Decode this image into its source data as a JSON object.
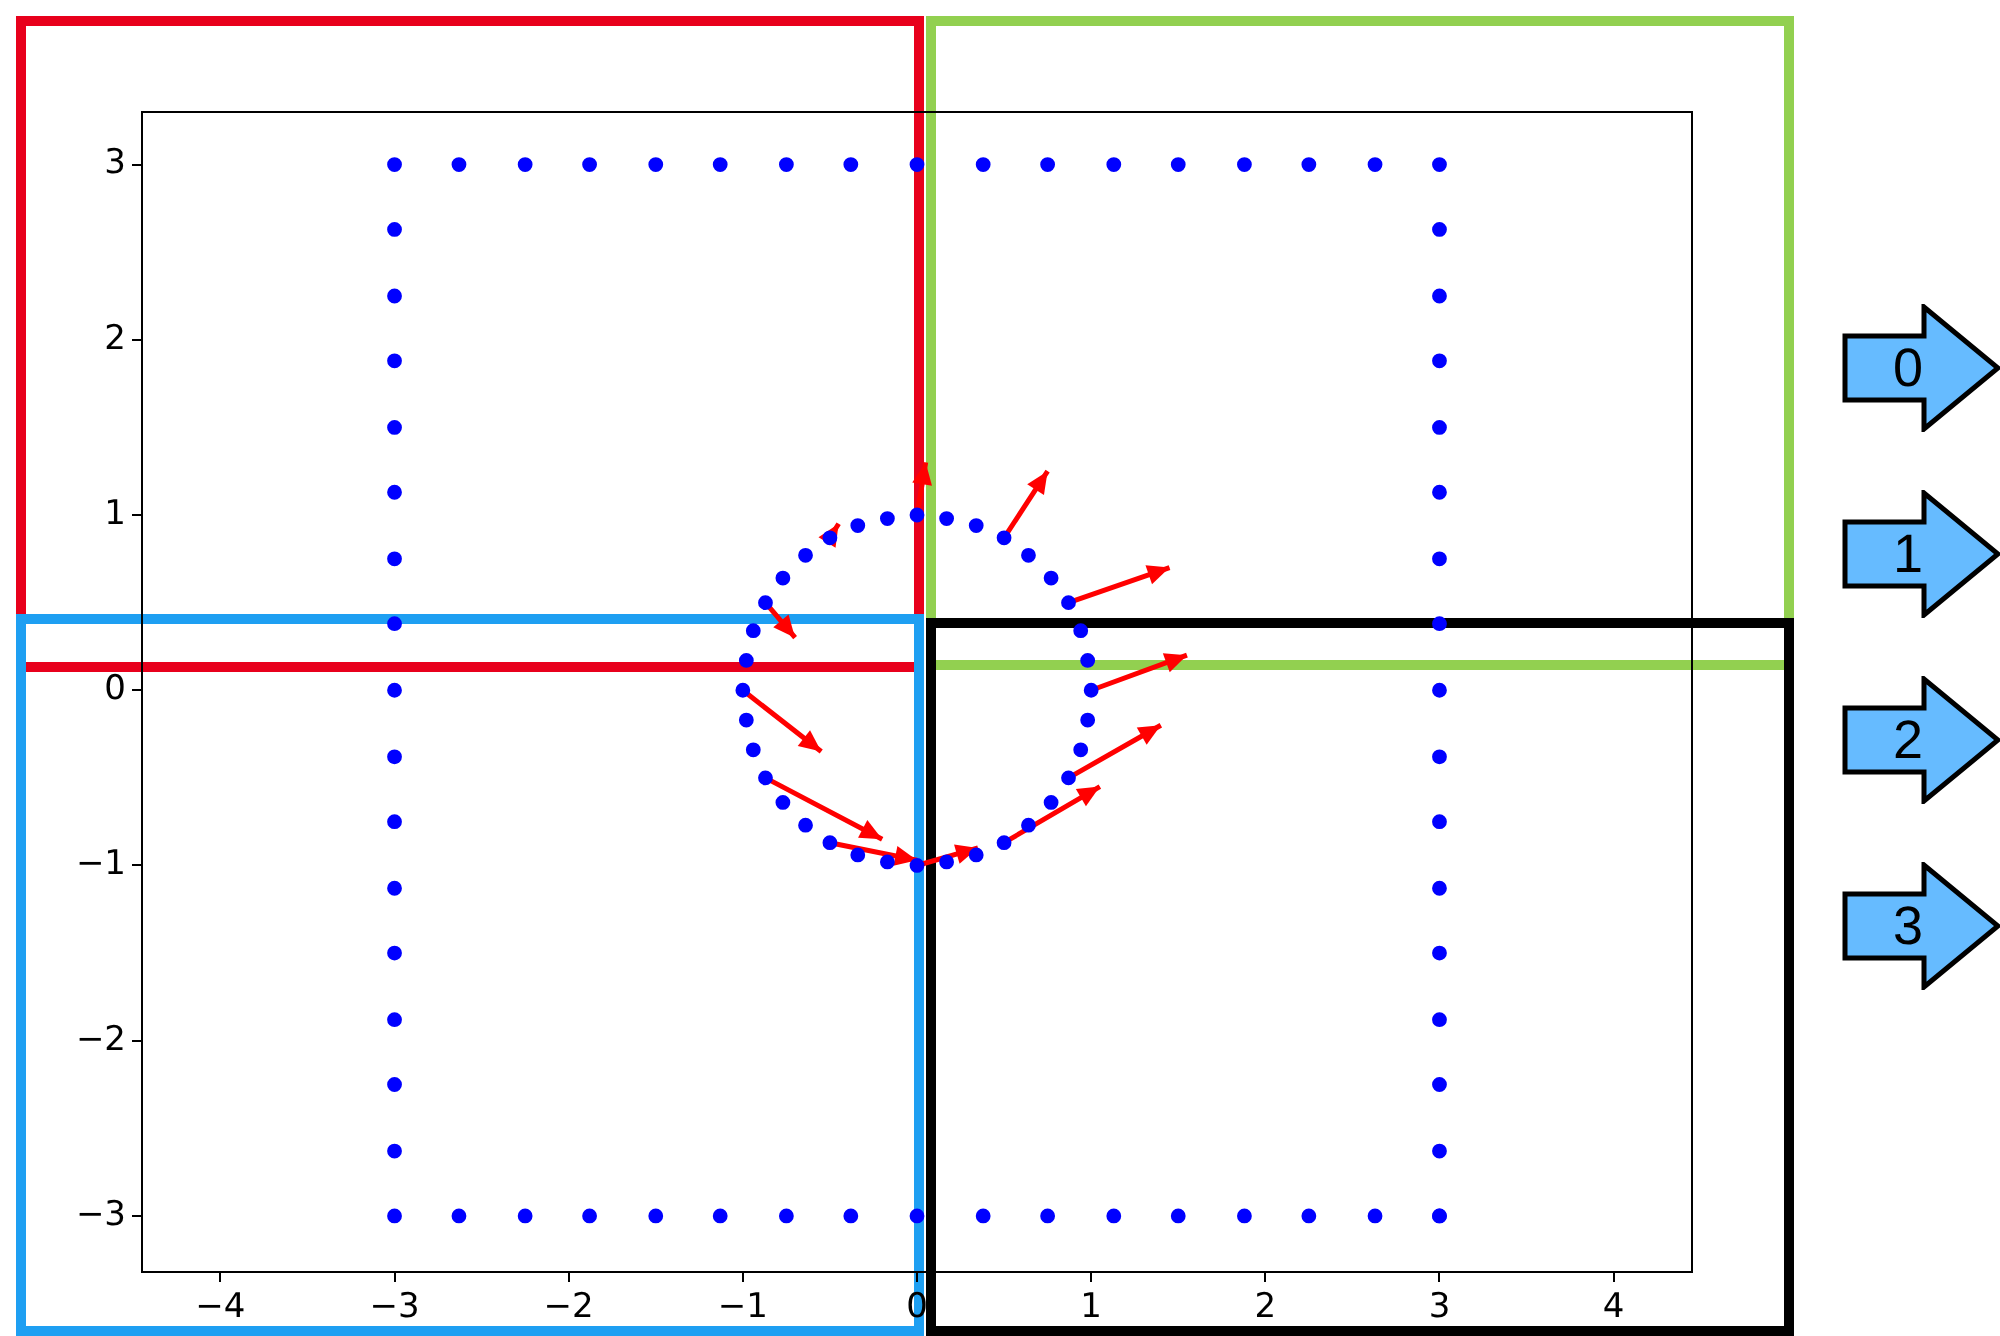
{
  "chart_data": {
    "type": "scatter",
    "marker": "circle",
    "legend": false,
    "grid": false,
    "xlim": [
      -4.45,
      4.45
    ],
    "ylim": [
      -3.32,
      3.3
    ],
    "xticks": [
      {
        "value": -4,
        "label": "−4"
      },
      {
        "value": -3,
        "label": "−3"
      },
      {
        "value": -2,
        "label": "−2"
      },
      {
        "value": -1,
        "label": "−1"
      },
      0,
      1,
      2,
      3,
      4
    ],
    "yticks": [
      {
        "value": -3,
        "label": "−3"
      },
      {
        "value": -2,
        "label": "−2"
      },
      {
        "value": -1,
        "label": "−1"
      },
      0,
      1,
      2,
      3
    ],
    "annotations": [
      "0",
      "1",
      "2",
      "3"
    ],
    "series": [
      {
        "color": "#0000ff",
        "x": [
          -3,
          -2.63,
          -2.25,
          -1.88,
          -1.5,
          -1.13,
          -0.75,
          -0.38,
          0,
          0.38,
          0.75,
          1.13,
          1.5,
          1.88,
          2.25,
          2.63,
          3,
          3,
          3,
          3,
          3,
          3,
          3,
          3,
          3,
          3,
          3,
          3,
          3,
          3,
          3,
          3,
          3,
          -3,
          -2.63,
          -2.25,
          -1.88,
          -1.5,
          -1.13,
          -0.75,
          -0.38,
          0,
          0.38,
          0.75,
          1.13,
          1.5,
          1.88,
          2.25,
          2.63,
          3,
          -3,
          -3,
          -3,
          -3,
          -3,
          -3,
          -3,
          -3,
          -3,
          -3,
          -3,
          -3,
          -3,
          -3,
          -3
        ],
        "values": [
          3,
          3,
          3,
          3,
          3,
          3,
          3,
          3,
          3,
          3,
          3,
          3,
          3,
          3,
          3,
          3,
          3,
          2.63,
          2.25,
          1.88,
          1.5,
          1.13,
          0.75,
          0.38,
          0,
          -0.38,
          -0.75,
          -1.13,
          -1.5,
          -1.88,
          -2.25,
          -2.63,
          -3,
          -3,
          -3,
          -3,
          -3,
          -3,
          -3,
          -3,
          -3,
          -3,
          -3,
          -3,
          -3,
          -3,
          -3,
          -3,
          -3,
          -3,
          2.63,
          2.25,
          1.88,
          1.5,
          1.13,
          0.75,
          0.38,
          0,
          -0.38,
          -0.75,
          -1.13,
          -1.5,
          -1.88,
          -2.25,
          -2.63
        ]
      },
      {
        "color": "#0000ff",
        "x": [
          1,
          0.98,
          0.94,
          0.87,
          0.77,
          0.64,
          0.5,
          0.34,
          0.17,
          0,
          -0.17,
          -0.34,
          -0.5,
          -0.64,
          -0.77,
          -0.87,
          -0.94,
          -0.98,
          -1,
          -0.98,
          -0.94,
          -0.87,
          -0.77,
          -0.64,
          -0.5,
          -0.34,
          -0.17,
          0,
          0.17,
          0.34,
          0.5,
          0.64,
          0.77,
          0.87,
          0.94,
          0.98
        ],
        "values": [
          0,
          0.17,
          0.34,
          0.5,
          0.64,
          0.77,
          0.87,
          0.94,
          0.98,
          1,
          0.98,
          0.94,
          0.87,
          0.77,
          0.64,
          0.5,
          0.34,
          0.17,
          0,
          -0.17,
          -0.34,
          -0.5,
          -0.64,
          -0.77,
          -0.87,
          -0.94,
          -0.98,
          -1,
          -0.98,
          -0.94,
          -0.87,
          -0.77,
          -0.64,
          -0.5,
          -0.34,
          -0.17
        ]
      },
      {
        "type": "line",
        "marker": "none",
        "color": "#ff0000",
        "x": [
          1,
          1.55,
          null,
          0.87,
          1.45,
          null,
          0.5,
          0.75,
          null,
          0,
          0.05,
          null,
          -0.5,
          -0.45,
          null,
          -0.87,
          -0.7,
          null,
          -1,
          -0.55,
          null,
          -0.87,
          -0.2,
          null,
          -0.5,
          0,
          null,
          0,
          0.35,
          null,
          0.5,
          1.05,
          null,
          0.87,
          1.4
        ],
        "values": [
          0,
          0.2,
          null,
          0.5,
          0.7,
          null,
          0.87,
          1.25,
          null,
          1,
          1.3,
          null,
          0.87,
          0.95,
          null,
          0.5,
          0.3,
          null,
          0,
          -0.35,
          null,
          -0.5,
          -0.85,
          null,
          -0.87,
          -0.97,
          null,
          -1,
          -0.9,
          null,
          -0.87,
          -0.55,
          null,
          -0.5,
          -0.2
        ]
      }
    ]
  }
}
